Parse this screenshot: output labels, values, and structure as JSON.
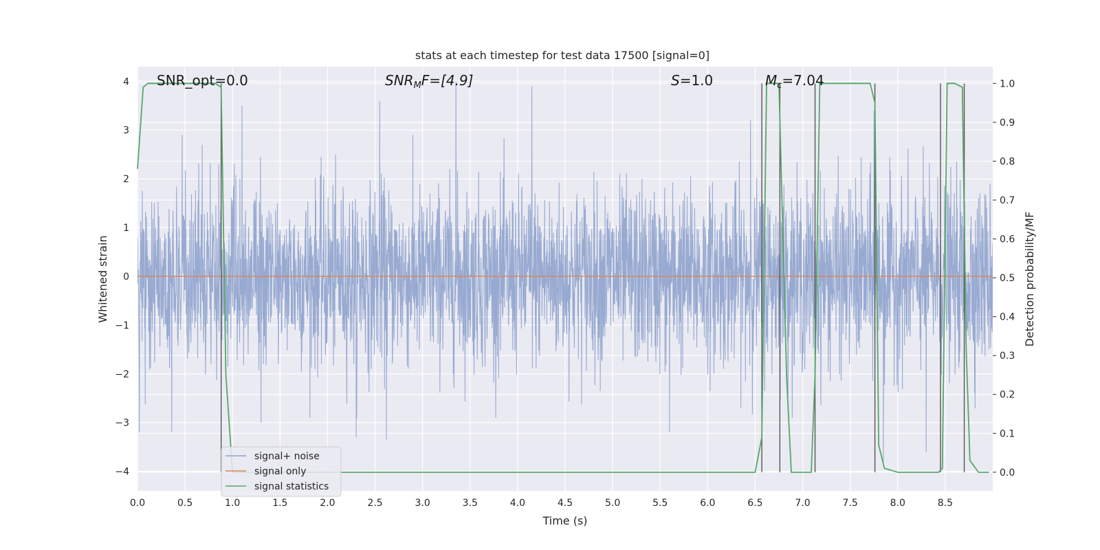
{
  "chart_data": {
    "type": "line",
    "title": "stats at each timestep for test data 17500 [signal=0]",
    "xlabel": "Time (s)",
    "ylabel": "Whitened strain",
    "y2label": "Detection probability/MF",
    "xlim": [
      0.0,
      9.0
    ],
    "ylim": [
      -4.4,
      4.3
    ],
    "y2lim": [
      -0.048,
      1.043
    ],
    "xticks": [
      "0.0",
      "0.5",
      "1.0",
      "1.5",
      "2.0",
      "2.5",
      "3.0",
      "3.5",
      "4.0",
      "4.5",
      "5.0",
      "5.5",
      "6.0",
      "6.5",
      "7.0",
      "7.5",
      "8.0",
      "8.5"
    ],
    "yticks": [
      "4",
      "3",
      "2",
      "1",
      "0",
      "−1",
      "−2",
      "−3",
      "−4"
    ],
    "y2ticks": [
      "1.0",
      "0.9",
      "0.8",
      "0.7",
      "0.6",
      "0.5",
      "0.4",
      "0.3",
      "0.2",
      "0.1",
      "0.0"
    ],
    "grid": true,
    "legend": {
      "placement": "lower-left",
      "entries": [
        "signal+ noise",
        "signal only",
        "signal statistics"
      ]
    },
    "annotations": {
      "snr_opt": "SNR_opt=0.0",
      "snr_mf_main": "SNR",
      "snr_mf_sub": "M",
      "snr_mf_rest": "F=[4.9]",
      "s_main": "S",
      "s_rest": "=1.0",
      "mc_main": "M",
      "mc_sub": "c",
      "mc_rest": "=7.04"
    },
    "series": [
      {
        "name": "signal+ noise",
        "color": "#8fa3cd",
        "noise_std": 0.9,
        "peaks": [
          {
            "x": 0.02,
            "y": -3.2
          },
          {
            "x": 0.36,
            "y": -3.2
          },
          {
            "x": 0.68,
            "y": 2.7
          },
          {
            "x": 1.1,
            "y": 3.5
          },
          {
            "x": 1.3,
            "y": -3.0
          },
          {
            "x": 2.3,
            "y": -3.3
          },
          {
            "x": 2.55,
            "y": 3.6
          },
          {
            "x": 2.62,
            "y": -3.35
          },
          {
            "x": 3.35,
            "y": 4.0
          },
          {
            "x": 4.15,
            "y": 3.9
          },
          {
            "x": 5.6,
            "y": -3.2
          },
          {
            "x": 6.45,
            "y": 3.2
          },
          {
            "x": 7.75,
            "y": 3.4
          },
          {
            "x": 7.85,
            "y": -3.8
          },
          {
            "x": 8.3,
            "y": -3.6
          }
        ]
      },
      {
        "name": "signal only",
        "color": "#dd8452",
        "x": [
          0.0,
          9.0
        ],
        "y": [
          0.0,
          0.0
        ]
      },
      {
        "name": "signal statistics",
        "color": "#55a868",
        "x": [
          0.0,
          0.06,
          0.11,
          0.2,
          0.5,
          0.82,
          0.88,
          0.93,
          1.0,
          1.05,
          6.5,
          6.57,
          6.62,
          6.75,
          6.83,
          6.88,
          6.96,
          7.09,
          7.13,
          7.18,
          7.71,
          7.76,
          7.8,
          7.86,
          7.93,
          8.0,
          8.1,
          8.43,
          8.47,
          8.52,
          8.6,
          8.68,
          8.72,
          8.76,
          8.85,
          8.96
        ],
        "y": [
          0.78,
          0.99,
          1.0,
          1.0,
          1.0,
          1.0,
          0.99,
          0.25,
          0.0,
          0.0,
          0.0,
          0.09,
          1.0,
          1.0,
          0.25,
          0.0,
          0.0,
          0.0,
          0.25,
          1.0,
          1.0,
          0.95,
          0.07,
          0.01,
          0.005,
          0.0,
          0.0,
          0.0,
          0.01,
          1.0,
          1.0,
          0.99,
          0.32,
          0.03,
          0.0,
          0.0
        ]
      }
    ],
    "vlines": [
      0.88,
      6.57,
      6.76,
      7.13,
      7.76,
      8.45,
      8.7
    ]
  }
}
